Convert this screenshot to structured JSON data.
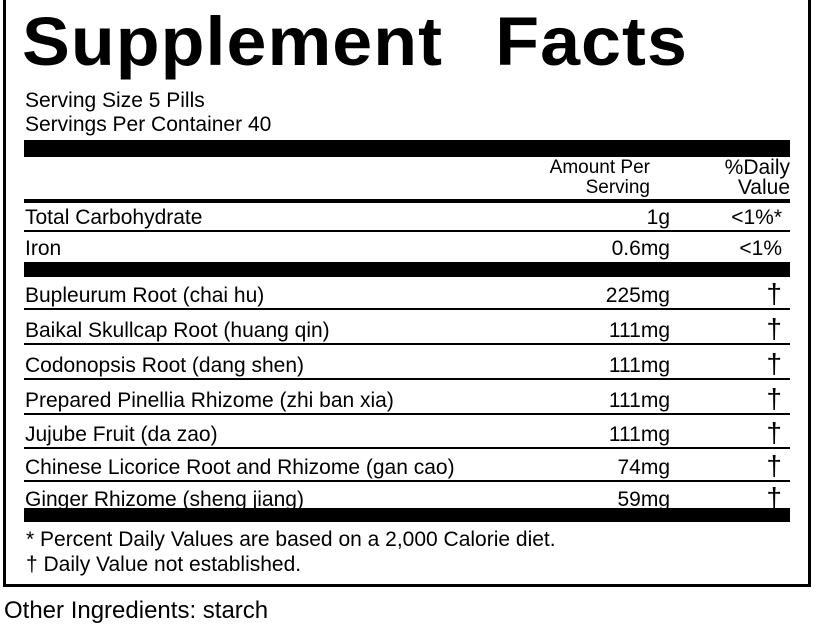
{
  "title": "Supplement Facts",
  "serving_size": "Serving Size 5 Pills",
  "servings_per_container": "Servings Per Container 40",
  "headers": {
    "amount_line1": "Amount Per",
    "amount_line2": "Serving",
    "dv_line1": "%Daily",
    "dv_line2": "Value"
  },
  "nutrients": [
    {
      "name": "Total Carbohydrate",
      "amount": "1g",
      "dv": "<1%*"
    },
    {
      "name": "Iron",
      "amount": "0.6mg",
      "dv": "<1%"
    }
  ],
  "ingredients": [
    {
      "name": "Bupleurum  Root (chai hu)",
      "amount": "225mg",
      "dv": "†"
    },
    {
      "name": "Baikal Skullcap Root (huang qin)",
      "amount": "111mg",
      "dv": "†"
    },
    {
      "name": "Codonopsis Root (dang shen)",
      "amount": "111mg",
      "dv": "†"
    },
    {
      "name": "Prepared Pinellia Rhizome  (zhi ban xia)",
      "amount": "111mg",
      "dv": "†"
    },
    {
      "name": "Jujube Fruit (da zao)",
      "amount": "111mg",
      "dv": "†"
    },
    {
      "name": "Chinese Licorice  Root and Rhizome  (gan cao)",
      "amount": "74mg",
      "dv": "†"
    },
    {
      "name": "Ginger Rhizome (sheng jiang)",
      "amount": "59mg",
      "dv": "†"
    }
  ],
  "footnotes": [
    "* Percent Daily Values are based on a  2,000  Calorie diet.",
    "† Daily Value not established."
  ],
  "other_ingredients": "Other Ingredients:     starch"
}
